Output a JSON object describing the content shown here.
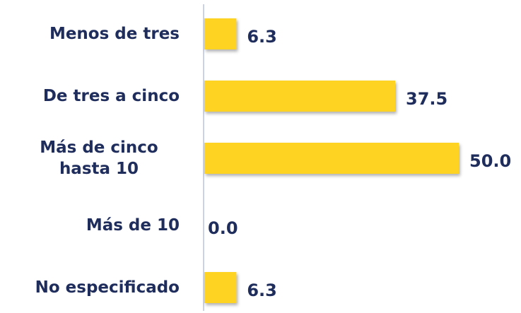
{
  "chart_data": {
    "type": "bar",
    "orientation": "horizontal",
    "categories": [
      "Menos de tres",
      "De tres a cinco",
      "Más de cinco hasta 10",
      "Más de 10",
      "No especificado"
    ],
    "values": [
      6.3,
      37.5,
      50.0,
      0.0,
      6.3
    ],
    "value_labels": [
      "6.3",
      "37.5",
      "50.0",
      "0.0",
      "6.3"
    ],
    "color": "#ffd320"
  }
}
